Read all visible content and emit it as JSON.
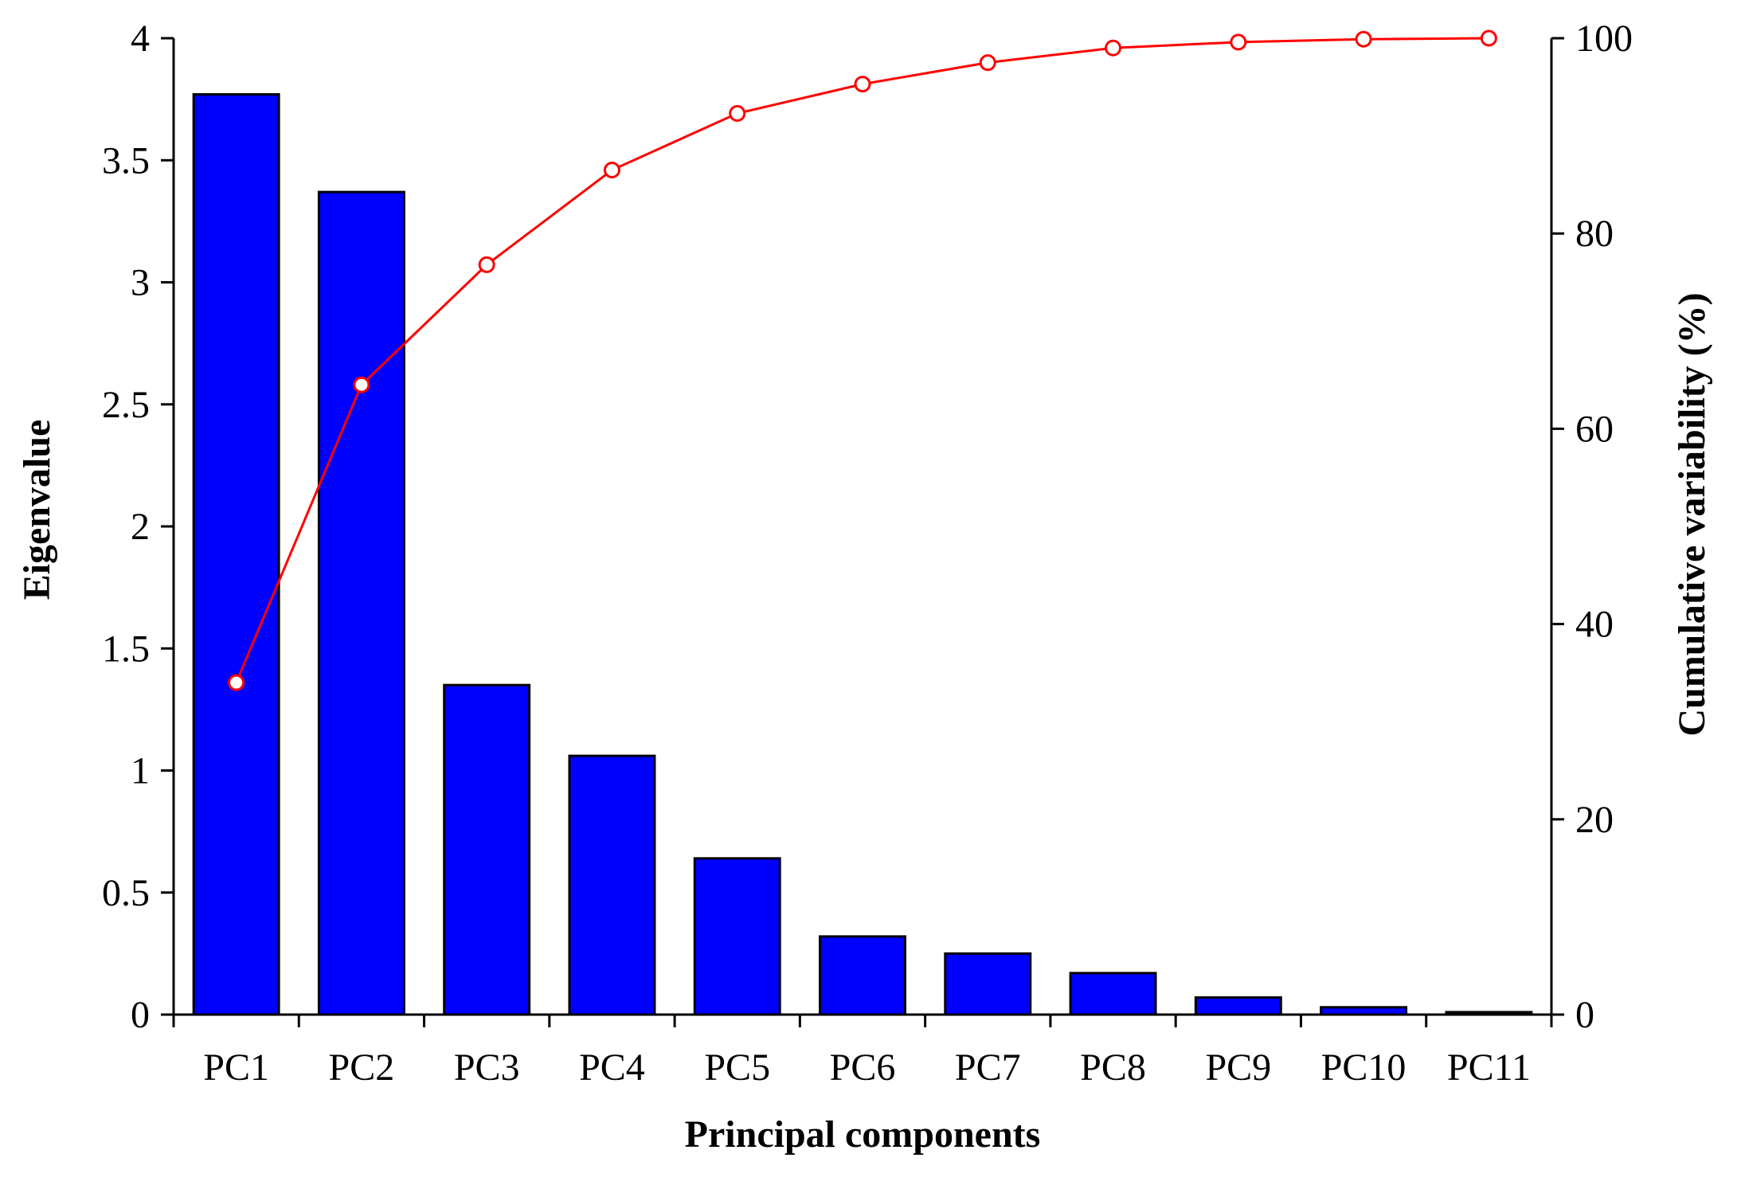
{
  "chart_data": {
    "type": "bar",
    "title": "",
    "xlabel": "Principal components",
    "ylabel": "Eigenvalue",
    "ylabel_right": "Cumulative variability (%)",
    "categories": [
      "PC1",
      "PC2",
      "PC3",
      "PC4",
      "PC5",
      "PC6",
      "PC7",
      "PC8",
      "PC9",
      "PC10",
      "PC11"
    ],
    "ylim": [
      0,
      4
    ],
    "ylim_right": [
      0,
      100
    ],
    "yticks": [
      "0",
      "0.5",
      "1",
      "1.5",
      "2",
      "2.5",
      "3",
      "3.5",
      "4"
    ],
    "yticks_right": [
      "0",
      "20",
      "40",
      "60",
      "80",
      "100"
    ],
    "grid": false,
    "legend": "none",
    "series": [
      {
        "type": "bar",
        "axis": "left",
        "color": "#0000ff",
        "values": [
          3.77,
          3.37,
          1.35,
          1.06,
          0.64,
          0.32,
          0.25,
          0.17,
          0.07,
          0.03,
          0.01
        ]
      },
      {
        "type": "line",
        "axis": "right",
        "color": "#ff0000",
        "values": [
          34.0,
          64.5,
          76.8,
          86.5,
          92.3,
          95.3,
          97.5,
          99.0,
          99.6,
          99.9,
          100.0
        ]
      }
    ]
  }
}
